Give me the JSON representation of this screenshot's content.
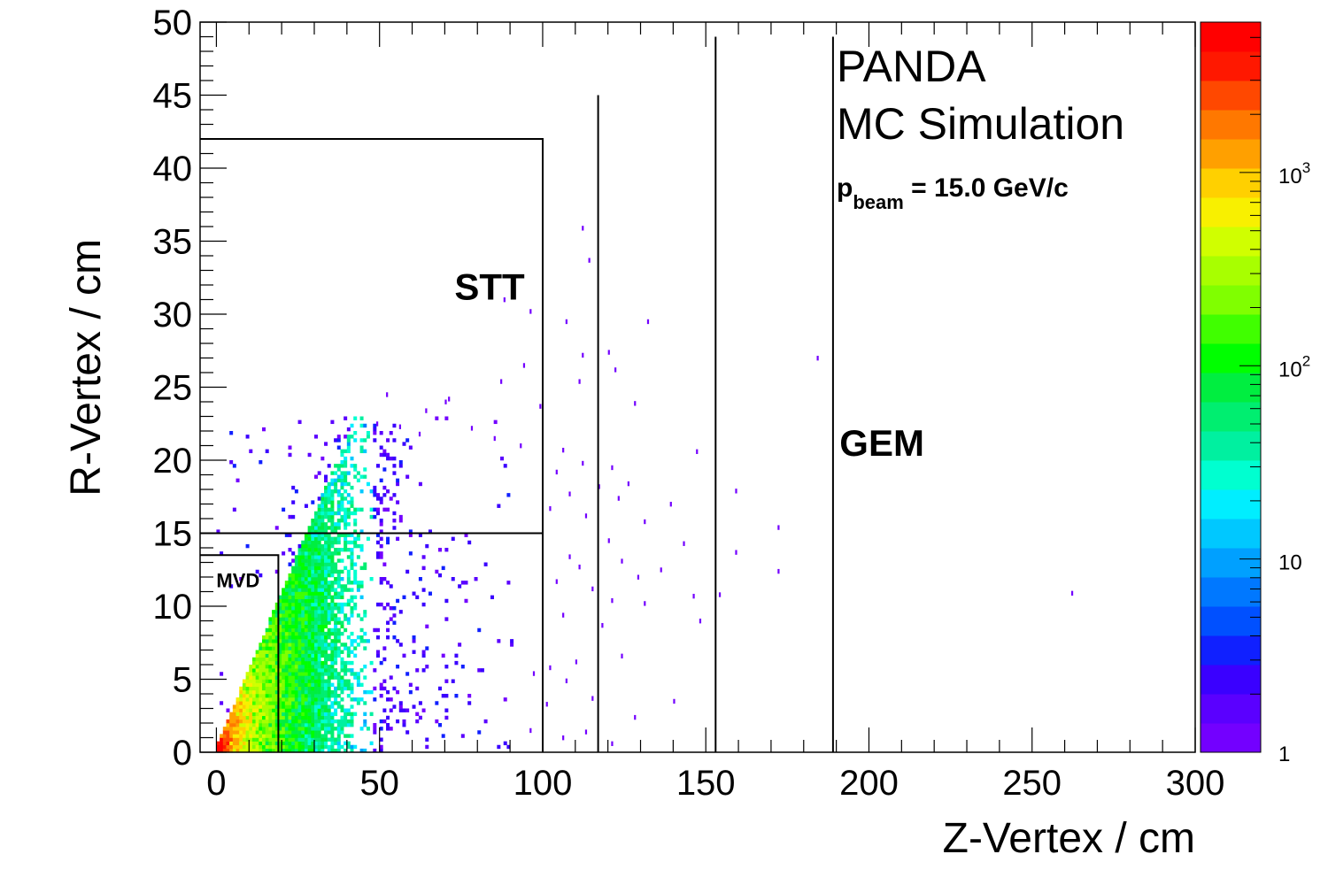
{
  "chart_data": {
    "type": "heatmap",
    "xlabel": "Z-Vertex / cm",
    "ylabel": "R-Vertex / cm",
    "xlim": [
      -5,
      300
    ],
    "ylim": [
      0,
      50
    ],
    "x_ticks": [
      0,
      50,
      100,
      150,
      200,
      250,
      300
    ],
    "y_ticks": [
      0,
      5,
      10,
      15,
      20,
      25,
      30,
      35,
      40,
      45,
      50
    ],
    "z_scale": "log",
    "z_range": [
      1,
      6000
    ],
    "z_ticks": [
      {
        "value": 1,
        "label": "1"
      },
      {
        "value": 10,
        "label": "10"
      },
      {
        "value": 100,
        "label": "10",
        "exponent": "2"
      },
      {
        "value": 1000,
        "label": "10",
        "exponent": "3"
      }
    ],
    "palette": [
      "#7300ff",
      "#5a00ff",
      "#3a00ff",
      "#1020ff",
      "#0050ff",
      "#0078ff",
      "#00a0ff",
      "#00c8ff",
      "#00eeff",
      "#00ffd0",
      "#00f0a0",
      "#00ee70",
      "#00ee40",
      "#00ff00",
      "#40ff00",
      "#80ff00",
      "#a8ff00",
      "#d0ff00",
      "#f8f000",
      "#ffd000",
      "#ffa000",
      "#ff7800",
      "#ff4800",
      "#ff1800",
      "#ff0000"
    ],
    "info": {
      "line1": "PANDA",
      "line2": "MC Simulation",
      "beam_p": "p",
      "beam_sub": "beam",
      "beam_value": " = 15.0 GeV/c"
    },
    "detectors": [
      {
        "label": "MVD",
        "outline": [
          [
            -5,
            13.5
          ],
          [
            19,
            13.5
          ],
          [
            19,
            0
          ]
        ]
      },
      {
        "label": "STT",
        "outline": [
          [
            -5,
            15
          ],
          [
            100,
            15
          ]
        ]
      },
      {
        "label": "",
        "outline": [
          [
            -5,
            42
          ],
          [
            100,
            42
          ],
          [
            100,
            0
          ]
        ]
      },
      {
        "label": "",
        "outline": [
          [
            117,
            45
          ],
          [
            117,
            0
          ]
        ]
      },
      {
        "label": "",
        "outline": [
          [
            153,
            49
          ],
          [
            153,
            0
          ]
        ]
      },
      {
        "label": "GEM",
        "outline": [
          [
            189,
            49
          ],
          [
            189,
            0
          ]
        ]
      }
    ],
    "detector_label_positions": [
      {
        "label": "MVD",
        "x": 0,
        "y": 11.3
      },
      {
        "label": "STT",
        "x": 73,
        "y": 31
      },
      {
        "label": "GEM",
        "x": 191,
        "y": 20.3
      }
    ],
    "dense_region": {
      "description": "triangular high-density band from R=0 at Z=0 rising with slope ~0.52 cm/cm, peak density near origin",
      "max_counts": 5000
    },
    "isolated_points": [
      [
        112,
        35.7
      ],
      [
        114,
        33.5
      ],
      [
        88,
        30.8
      ],
      [
        96,
        30
      ],
      [
        107,
        29.3
      ],
      [
        132,
        29.3
      ],
      [
        120,
        27.2
      ],
      [
        112,
        27
      ],
      [
        184,
        26.8
      ],
      [
        94,
        26.3
      ],
      [
        122,
        26
      ],
      [
        87,
        25.2
      ],
      [
        111,
        25.2
      ],
      [
        52,
        24.3
      ],
      [
        71,
        24
      ],
      [
        128,
        23.7
      ],
      [
        99,
        23.5
      ],
      [
        64,
        23.2
      ],
      [
        70,
        23.8
      ],
      [
        49,
        22.3
      ],
      [
        56,
        22.1
      ],
      [
        78,
        22
      ],
      [
        62,
        21.6
      ],
      [
        85,
        21.3
      ],
      [
        93,
        20.8
      ],
      [
        106,
        20.5
      ],
      [
        147,
        20.4
      ],
      [
        112,
        19.6
      ],
      [
        121,
        19.3
      ],
      [
        104,
        19
      ],
      [
        126,
        18.2
      ],
      [
        117,
        18
      ],
      [
        159,
        17.7
      ],
      [
        108,
        17.5
      ],
      [
        123,
        17.2
      ],
      [
        139,
        16.8
      ],
      [
        102,
        16.5
      ],
      [
        113,
        16
      ],
      [
        172,
        15.2
      ],
      [
        131,
        15.6
      ],
      [
        120,
        14.3
      ],
      [
        143,
        14.1
      ],
      [
        159,
        13.5
      ],
      [
        108,
        13.2
      ],
      [
        124,
        12.9
      ],
      [
        111,
        12.5
      ],
      [
        136,
        12.3
      ],
      [
        172,
        12.2
      ],
      [
        129,
        11.8
      ],
      [
        104,
        11.5
      ],
      [
        115,
        11
      ],
      [
        146,
        10.5
      ],
      [
        121,
        10.2
      ],
      [
        154,
        10.6
      ],
      [
        262,
        10.7
      ],
      [
        131,
        10
      ],
      [
        106,
        9.2
      ],
      [
        148,
        8.8
      ],
      [
        118,
        8.5
      ],
      [
        124,
        6.4
      ],
      [
        110,
        6
      ],
      [
        102,
        5.6
      ],
      [
        115,
        3.5
      ],
      [
        140,
        3.3
      ],
      [
        128,
        2.2
      ],
      [
        113,
        1.2
      ],
      [
        106,
        0.8
      ],
      [
        121,
        0.4
      ],
      [
        96,
        1.3
      ],
      [
        97,
        5.2
      ],
      [
        107,
        4.7
      ],
      [
        101,
        3.1
      ]
    ]
  }
}
